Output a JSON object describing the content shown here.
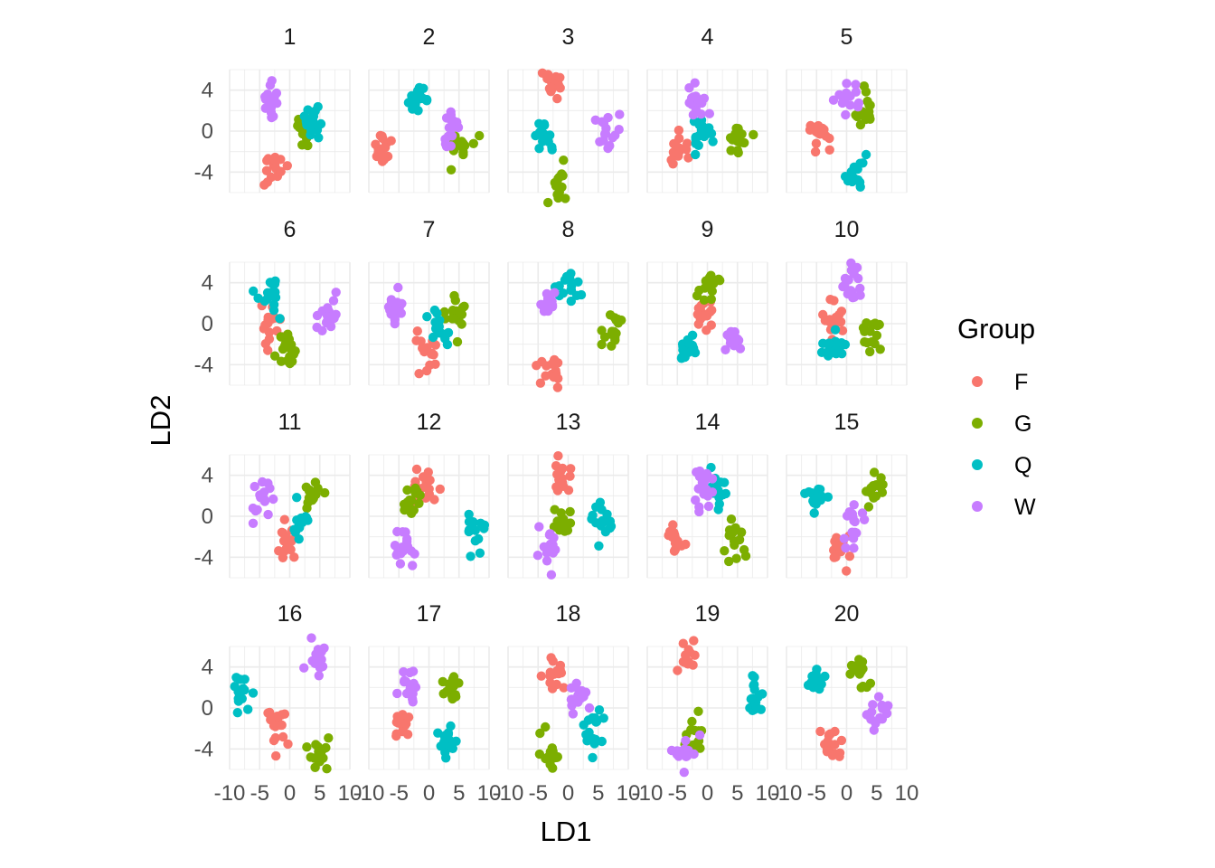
{
  "chart_data": {
    "type": "scatter",
    "title": "",
    "xlabel": "LD1",
    "ylabel": "LD2",
    "xlim": [
      -10,
      10
    ],
    "ylim": [
      -6,
      6
    ],
    "x_ticks": [
      -10,
      -5,
      0,
      5,
      10
    ],
    "x_tick_labels": [
      "-10",
      "-5",
      "0",
      "5",
      "10"
    ],
    "y_ticks": [
      -4,
      0,
      4
    ],
    "y_tick_labels": [
      "-4",
      "0",
      "4"
    ],
    "grid": true,
    "legend": {
      "title": "Group",
      "position": "right",
      "entries": [
        {
          "label": "F",
          "color": "#F8766D"
        },
        {
          "label": "G",
          "color": "#7CAE00"
        },
        {
          "label": "Q",
          "color": "#00BFC4"
        },
        {
          "label": "W",
          "color": "#C77CFF"
        }
      ]
    },
    "facets": [
      {
        "panel": "1",
        "groups": {
          "F": [
            -2.5,
            -3.8
          ],
          "G": [
            2.8,
            0.2
          ],
          "Q": [
            3.6,
            0.9
          ],
          "W": [
            -3.2,
            2.8
          ]
        }
      },
      {
        "panel": "2",
        "groups": {
          "F": [
            -7.5,
            -1.6
          ],
          "G": [
            5.5,
            -1.0
          ],
          "Q": [
            -1.8,
            3.3
          ],
          "W": [
            3.8,
            -0.2
          ]
        }
      },
      {
        "panel": "3",
        "groups": {
          "F": [
            -2.5,
            4.5
          ],
          "G": [
            -1.8,
            -5.0
          ],
          "Q": [
            -3.8,
            -0.3
          ],
          "W": [
            7.0,
            0.3
          ]
        }
      },
      {
        "panel": "4",
        "groups": {
          "F": [
            -4.5,
            -2.0
          ],
          "G": [
            5.0,
            -1.0
          ],
          "Q": [
            -0.8,
            -0.3
          ],
          "W": [
            -1.5,
            3.3
          ]
        }
      },
      {
        "panel": "5",
        "groups": {
          "F": [
            -4.5,
            -0.1
          ],
          "G": [
            3.5,
            1.9
          ],
          "Q": [
            1.5,
            -4.0
          ],
          "W": [
            0.0,
            2.9
          ]
        }
      },
      {
        "panel": "6",
        "groups": {
          "F": [
            -3.0,
            0.0
          ],
          "G": [
            -0.5,
            -3.0
          ],
          "Q": [
            -3.0,
            2.7
          ],
          "W": [
            6.5,
            1.0
          ]
        }
      },
      {
        "panel": "7",
        "groups": {
          "F": [
            -0.5,
            -2.5
          ],
          "G": [
            4.5,
            1.3
          ],
          "Q": [
            2.0,
            -0.5
          ],
          "W": [
            -5.5,
            1.5
          ]
        }
      },
      {
        "panel": "8",
        "groups": {
          "F": [
            -3.0,
            -4.5
          ],
          "G": [
            7.0,
            -1.0
          ],
          "Q": [
            0.3,
            3.4
          ],
          "W": [
            -3.5,
            2.5
          ]
        }
      },
      {
        "panel": "9",
        "groups": {
          "F": [
            -0.8,
            1.0
          ],
          "G": [
            0.0,
            3.5
          ],
          "Q": [
            -3.0,
            -2.3
          ],
          "W": [
            4.5,
            -1.7
          ]
        }
      },
      {
        "panel": "10",
        "groups": {
          "F": [
            -2.0,
            0.5
          ],
          "G": [
            4.0,
            -1.0
          ],
          "Q": [
            -2.0,
            -2.0
          ],
          "W": [
            0.5,
            3.8
          ]
        }
      },
      {
        "panel": "11",
        "groups": {
          "F": [
            -0.5,
            -3.0
          ],
          "G": [
            3.5,
            2.0
          ],
          "Q": [
            2.0,
            -0.2
          ],
          "W": [
            -5.0,
            1.5
          ]
        }
      },
      {
        "panel": "12",
        "groups": {
          "F": [
            -0.5,
            2.6
          ],
          "G": [
            -3.0,
            1.5
          ],
          "Q": [
            8.0,
            -1.2
          ],
          "W": [
            -4.0,
            -3.2
          ]
        }
      },
      {
        "panel": "13",
        "groups": {
          "F": [
            -1.0,
            4.0
          ],
          "G": [
            -1.0,
            -0.7
          ],
          "Q": [
            6.0,
            -0.6
          ],
          "W": [
            -3.5,
            -3.6
          ]
        }
      },
      {
        "panel": "14",
        "groups": {
          "F": [
            -5.5,
            -2.5
          ],
          "G": [
            4.5,
            -2.8
          ],
          "Q": [
            1.5,
            2.4
          ],
          "W": [
            -1.0,
            2.6
          ]
        }
      },
      {
        "panel": "15",
        "groups": {
          "F": [
            -1.0,
            -3.0
          ],
          "G": [
            4.5,
            2.4
          ],
          "Q": [
            -5.0,
            2.0
          ],
          "W": [
            1.3,
            -0.9
          ]
        }
      },
      {
        "panel": "16",
        "groups": {
          "F": [
            -2.0,
            -1.7
          ],
          "G": [
            5.0,
            -4.5
          ],
          "Q": [
            -8.0,
            1.2
          ],
          "W": [
            4.5,
            5.5
          ]
        }
      },
      {
        "panel": "17",
        "groups": {
          "F": [
            -4.5,
            -1.8
          ],
          "G": [
            4.0,
            1.8
          ],
          "Q": [
            3.0,
            -3.3
          ],
          "W": [
            -3.0,
            2.4
          ]
        }
      },
      {
        "panel": "18",
        "groups": {
          "F": [
            -2.5,
            3.6
          ],
          "G": [
            -2.8,
            -4.4
          ],
          "Q": [
            4.0,
            -1.8
          ],
          "W": [
            2.0,
            1.0
          ]
        }
      },
      {
        "panel": "19",
        "groups": {
          "F": [
            -3.5,
            5.0
          ],
          "G": [
            -1.8,
            -2.8
          ],
          "Q": [
            8.0,
            1.0
          ],
          "W": [
            -3.5,
            -4.2
          ]
        }
      },
      {
        "panel": "20",
        "groups": {
          "F": [
            -2.5,
            -3.7
          ],
          "G": [
            2.0,
            3.3
          ],
          "Q": [
            -5.0,
            2.6
          ],
          "W": [
            5.5,
            -0.8
          ]
        }
      }
    ]
  }
}
